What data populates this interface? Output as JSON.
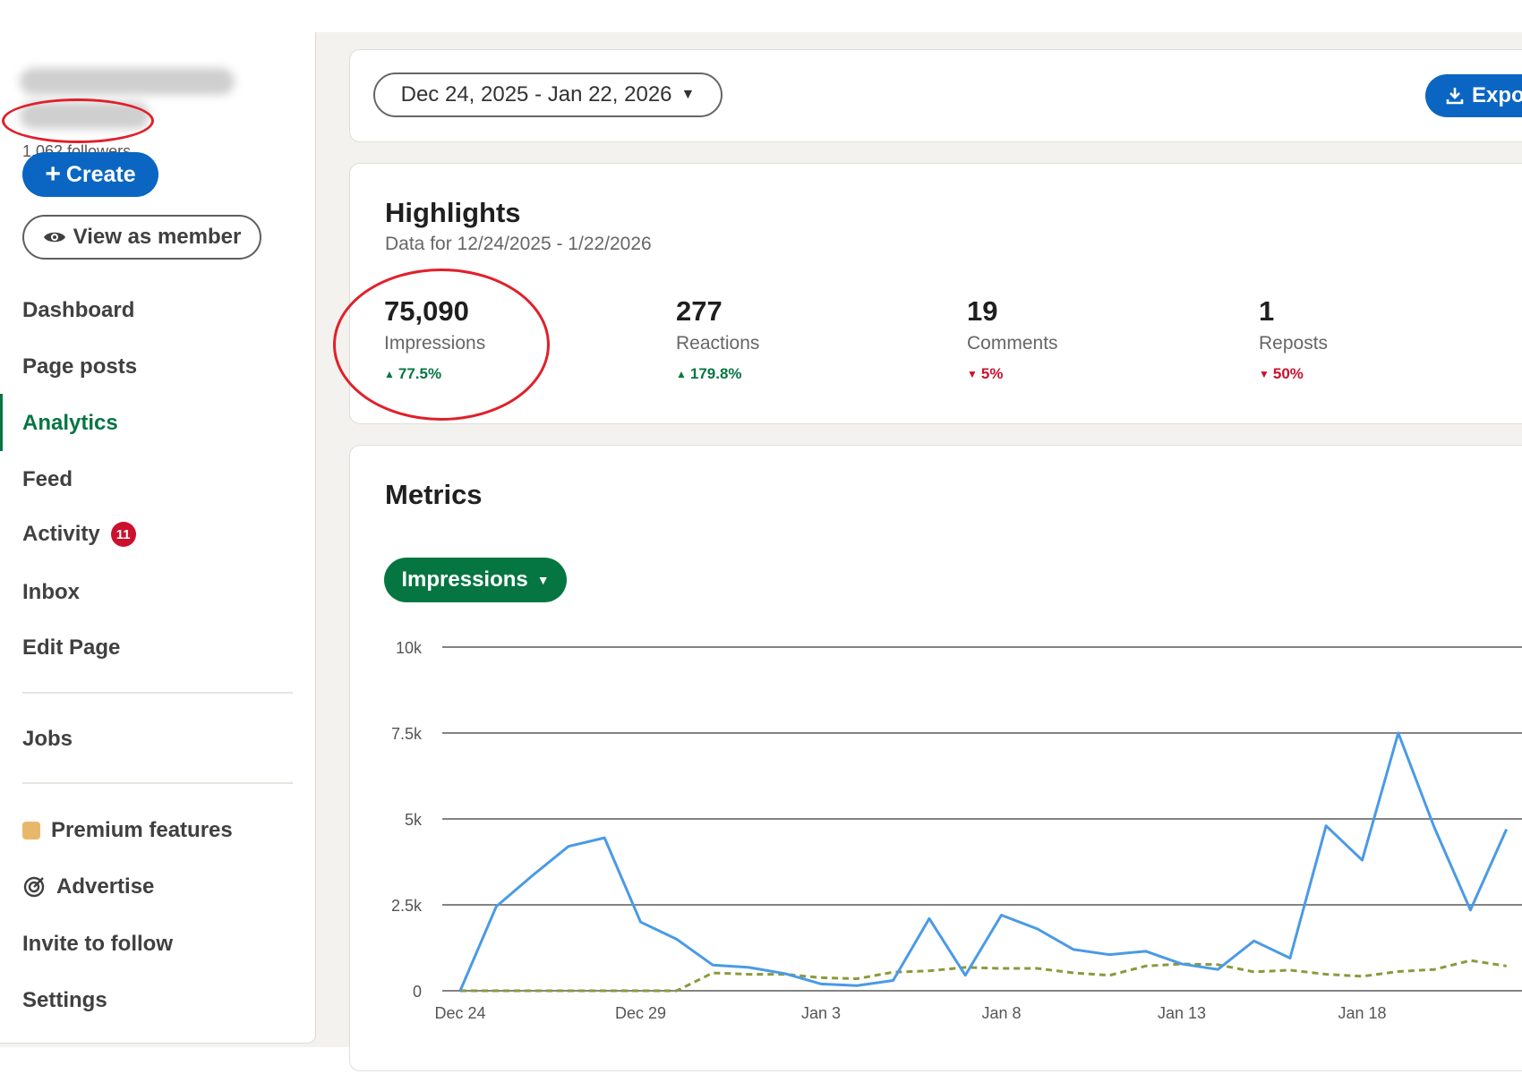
{
  "sidebar": {
    "followers": "1,062 followers",
    "create_label": "Create",
    "view_member_label": "View as member",
    "nav": [
      {
        "label": "Dashboard"
      },
      {
        "label": "Page posts"
      },
      {
        "label": "Analytics"
      },
      {
        "label": "Feed"
      },
      {
        "label": "Activity",
        "badge": "11"
      },
      {
        "label": "Inbox"
      },
      {
        "label": "Edit Page"
      },
      {
        "label": "Jobs"
      },
      {
        "label": "Premium features"
      },
      {
        "label": "Advertise"
      },
      {
        "label": "Invite to follow"
      },
      {
        "label": "Settings"
      }
    ]
  },
  "toolbar": {
    "date_range": "Dec 24, 2025 - Jan 22, 2026",
    "export_label": "Expo"
  },
  "highlights": {
    "title": "Highlights",
    "subtitle": "Data for 12/24/2025 - 1/22/2026",
    "stats": [
      {
        "value": "75,090",
        "label": "Impressions",
        "change": "77.5%",
        "direction": "up"
      },
      {
        "value": "277",
        "label": "Reactions",
        "change": "179.8%",
        "direction": "up"
      },
      {
        "value": "19",
        "label": "Comments",
        "change": "5%",
        "direction": "down"
      },
      {
        "value": "1",
        "label": "Reposts",
        "change": "50%",
        "direction": "down"
      }
    ]
  },
  "metrics": {
    "title": "Metrics",
    "selector_label": "Impressions"
  },
  "colors": {
    "brand_blue": "#0a66c2",
    "active_green": "#057642",
    "alert_red": "#cb112d",
    "annotation_red": "#e0202a",
    "series_current": "#4a9ae6",
    "series_previous": "#8a9a3a"
  },
  "chart_data": {
    "type": "line",
    "y_ticks": [
      "10k",
      "7.5k",
      "5k",
      "2.5k",
      "0"
    ],
    "ylim": [
      0,
      10000
    ],
    "x_tick_labels": [
      "Dec 24",
      "Dec 29",
      "Jan 3",
      "Jan 8",
      "Jan 13",
      "Jan 18"
    ],
    "x_tick_positions": [
      0,
      5,
      10,
      15,
      20,
      25
    ],
    "series": [
      {
        "style": "solid",
        "values": [
          0,
          2450,
          3350,
          4200,
          4450,
          2000,
          1500,
          750,
          680,
          500,
          200,
          150,
          300,
          2100,
          450,
          2200,
          1800,
          1200,
          1050,
          1150,
          780,
          620,
          1450,
          950,
          4800,
          3800,
          7500,
          4750,
          2350,
          4700
        ]
      },
      {
        "style": "dashed",
        "values": [
          0,
          0,
          0,
          0,
          0,
          0,
          0,
          520,
          480,
          480,
          380,
          350,
          540,
          580,
          680,
          650,
          650,
          520,
          450,
          720,
          780,
          760,
          550,
          600,
          480,
          420,
          560,
          620,
          880,
          720
        ]
      }
    ]
  }
}
